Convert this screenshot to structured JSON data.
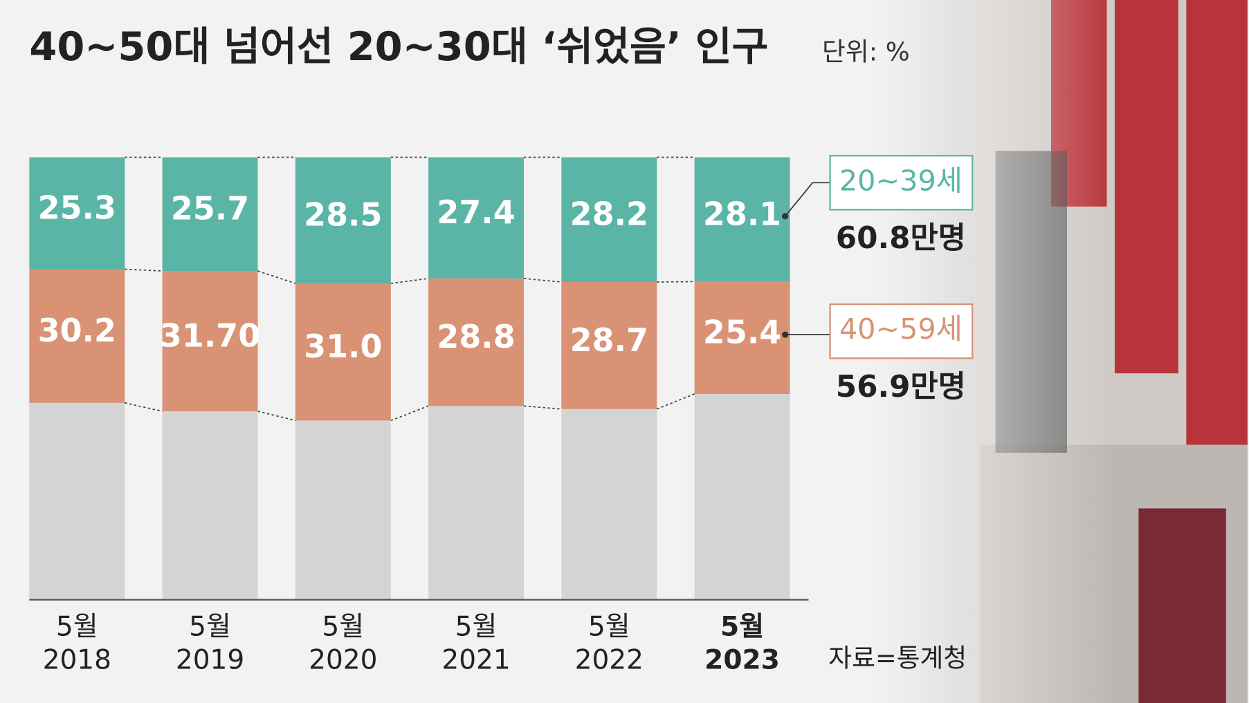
{
  "chart_data": {
    "type": "stacked_bar",
    "title": "40~50대 넘어선 20~30대 ‘쉬었음’ 인구",
    "unit": "단위: %",
    "source": "자료=통계청",
    "categories": [
      "5월\n2018",
      "5월\n2019",
      "5월\n2020",
      "5월\n2021",
      "5월\n2022",
      "5월\n2023"
    ],
    "series": [
      {
        "name": "20~39세",
        "color": "#5bb5a6",
        "values": [
          25.3,
          25.7,
          28.5,
          27.4,
          28.2,
          28.1
        ],
        "value_labels": [
          "25.3",
          "25.7",
          "28.5",
          "27.4",
          "28.2",
          "28.1"
        ],
        "annotation": "60.8만명"
      },
      {
        "name": "40~59세",
        "color": "#d99274",
        "values": [
          30.2,
          31.7,
          31.0,
          28.8,
          28.7,
          25.4
        ],
        "value_labels": [
          "30.2",
          "31.70",
          "31.0",
          "28.8",
          "28.7",
          "25.4"
        ],
        "annotation": "56.9만명"
      }
    ],
    "ylim": [
      0,
      100
    ]
  }
}
